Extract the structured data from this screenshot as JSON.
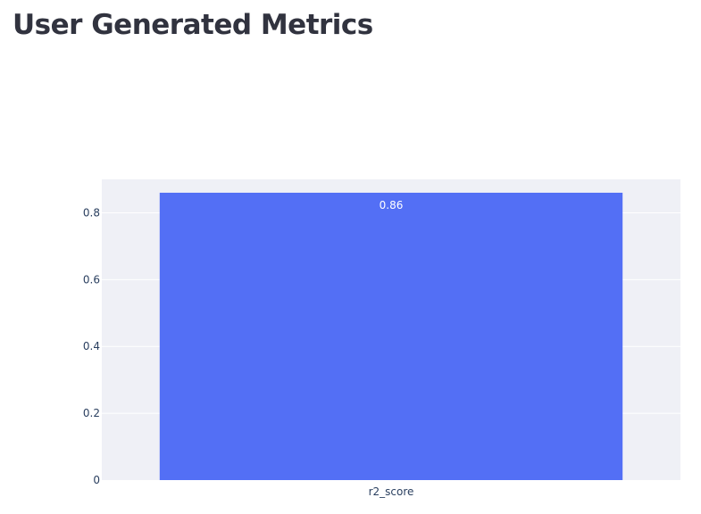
{
  "page": {
    "title": "User Generated Metrics"
  },
  "chart_data": {
    "type": "bar",
    "categories": [
      "r2_score"
    ],
    "values": [
      0.86
    ],
    "data_labels": [
      "0.86"
    ],
    "ylim": [
      0,
      0.9
    ],
    "yticks": [
      0,
      0.2,
      0.4,
      0.6,
      0.8
    ],
    "ytick_labels": [
      "0",
      "0.2",
      "0.4",
      "0.6",
      "0.8"
    ],
    "title": "",
    "xlabel": "",
    "ylabel": "",
    "grid": true,
    "colors": {
      "bar": "#536ff5",
      "plot_background": "#eff0f6",
      "grid": "#ffffff",
      "tick_text": "#2a3f5f"
    }
  }
}
